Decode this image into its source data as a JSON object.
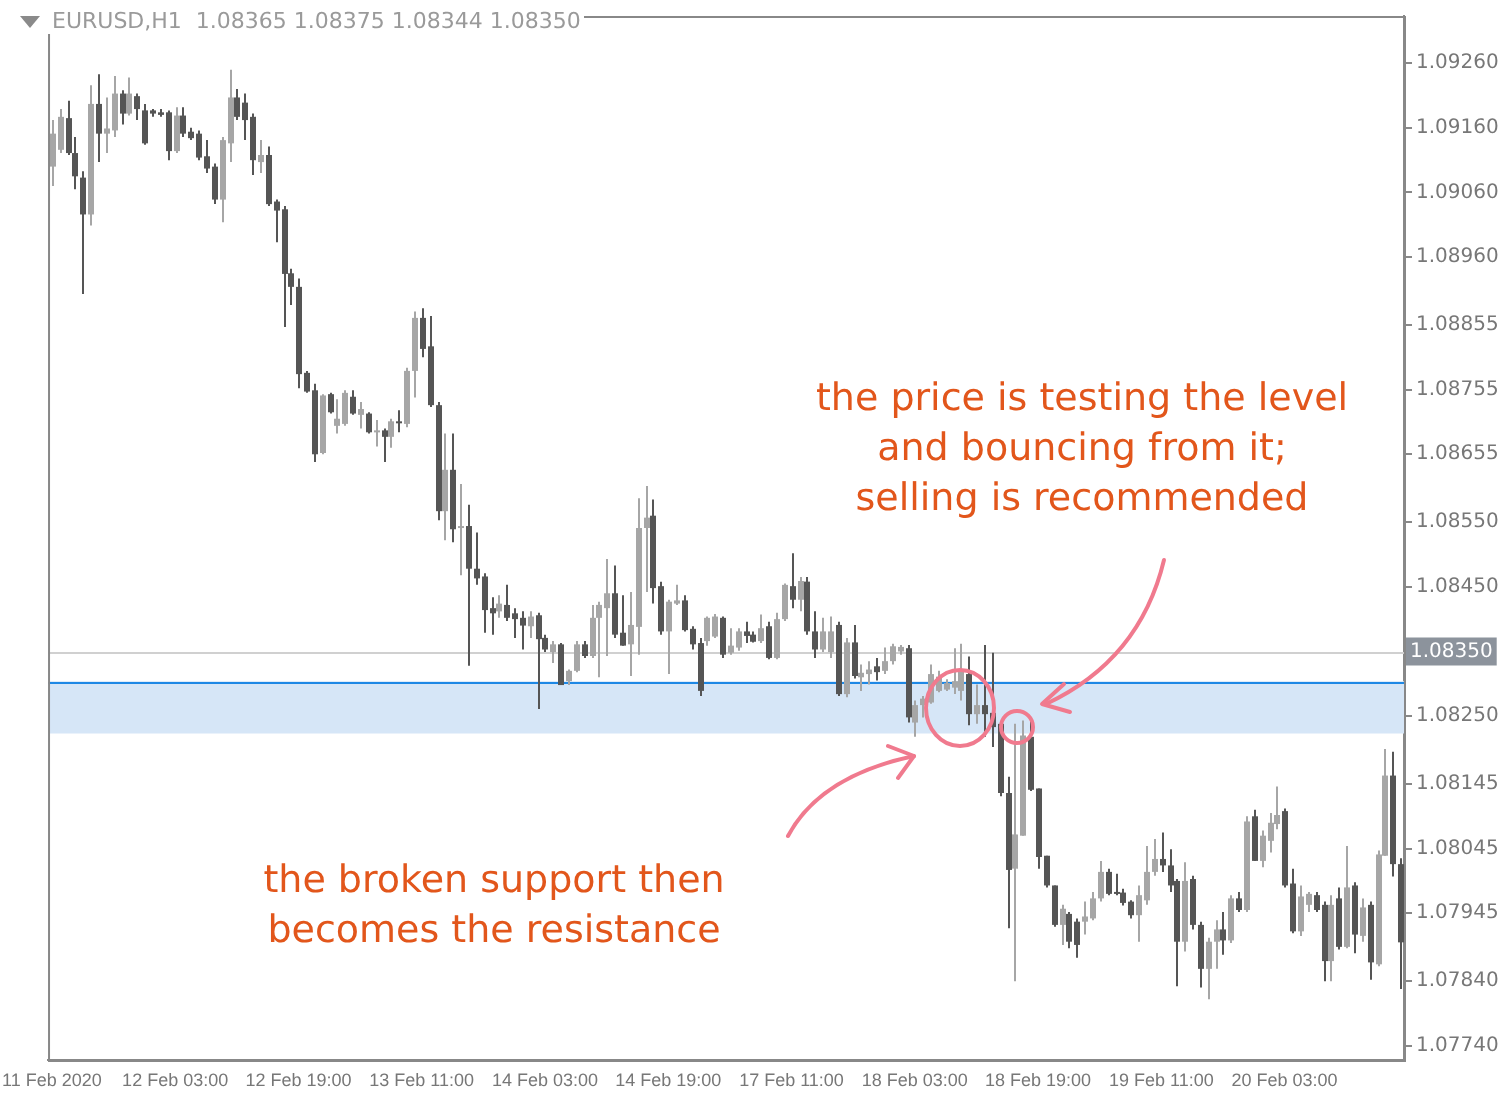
{
  "chart_data": {
    "type": "candlestick",
    "title": "EURUSD,H1  1.08365 1.08375 1.08344 1.08350",
    "categories": [
      "11 Feb 2020",
      null,
      null,
      null,
      null,
      null,
      null,
      null,
      null,
      null,
      null,
      null,
      null,
      null,
      null,
      null,
      "12 Feb 03:00",
      null,
      null,
      null,
      null,
      null,
      null,
      null,
      null,
      null,
      null,
      null,
      null,
      null,
      null,
      null,
      "12 Feb 19:00",
      null,
      null,
      null,
      null,
      null,
      null,
      null,
      null,
      null,
      null,
      null,
      null,
      null,
      null,
      null,
      "13 Feb 11:00",
      null,
      null,
      null,
      null,
      null,
      null,
      null,
      null,
      null,
      null,
      null,
      null,
      null,
      null,
      null,
      "14 Feb 03:00",
      null,
      null,
      null,
      null,
      null,
      null,
      null,
      null,
      null,
      null,
      null,
      null,
      null,
      null,
      null,
      "14 Feb 19:00",
      null,
      null,
      null,
      null,
      null,
      null,
      null,
      null,
      null,
      null,
      null,
      null,
      null,
      null,
      null,
      "17 Feb 11:00",
      null,
      null,
      null,
      null,
      null,
      null,
      null,
      null,
      null,
      null,
      null,
      null,
      null,
      null,
      null,
      "18 Feb 03:00",
      null,
      null,
      null,
      null,
      null,
      null,
      null,
      null,
      null,
      null,
      null,
      null,
      null,
      null,
      null,
      "18 Feb 19:00",
      null,
      null,
      null,
      null,
      null,
      null,
      null,
      null,
      null,
      null,
      null,
      null,
      null,
      null,
      null,
      "19 Feb 11:00",
      null,
      null,
      null,
      null,
      null,
      null,
      null,
      null,
      null,
      null,
      null,
      null,
      null,
      null,
      null,
      "20 Feb 03:00",
      null,
      null,
      null,
      null,
      null,
      null,
      null,
      null,
      null,
      null,
      null,
      null,
      null,
      null,
      null
    ],
    "ohlc": [
      [
        1.091,
        1.09172,
        1.0907,
        1.09151
      ],
      [
        1.09126,
        1.09189,
        1.09121,
        1.09177
      ],
      [
        1.09175,
        1.09202,
        1.09118,
        1.09121
      ],
      [
        1.09121,
        1.09146,
        1.09065,
        1.09085
      ],
      [
        1.09083,
        1.09093,
        1.08903,
        1.09026
      ],
      [
        1.09026,
        1.09226,
        1.09009,
        1.09197
      ],
      [
        1.09197,
        1.09243,
        1.09107,
        1.09151
      ],
      [
        1.09151,
        1.09207,
        1.09121,
        1.09159
      ],
      [
        1.09156,
        1.0924,
        1.09146,
        1.09213
      ],
      [
        1.09213,
        1.09218,
        1.09165,
        1.09182
      ],
      [
        1.09182,
        1.09238,
        1.09179,
        1.09213
      ],
      [
        1.09209,
        1.09213,
        1.09172,
        1.09189
      ],
      [
        1.09187,
        1.09197,
        1.09134,
        1.09136
      ],
      [
        1.09187,
        1.09189,
        1.09177,
        1.09182
      ],
      [
        1.09184,
        1.09189,
        1.09177,
        1.0918
      ],
      [
        1.09184,
        1.09187,
        1.0911,
        1.09124
      ],
      [
        1.09124,
        1.09192,
        1.09121,
        1.09179
      ],
      [
        1.09179,
        1.09192,
        1.09146,
        1.09151
      ],
      [
        1.09154,
        1.0916,
        1.09141,
        1.09144
      ],
      [
        1.09151,
        1.09156,
        1.0911,
        1.09114
      ],
      [
        1.09116,
        1.09141,
        1.0909,
        1.09097
      ],
      [
        1.091,
        1.09105,
        1.09042,
        1.09049
      ],
      [
        1.09049,
        1.09146,
        1.09014,
        1.09141
      ],
      [
        1.09136,
        1.0925,
        1.09107,
        1.09207
      ],
      [
        1.09207,
        1.0922,
        1.09172,
        1.09177
      ],
      [
        1.09199,
        1.09213,
        1.09141,
        1.09172
      ],
      [
        1.09177,
        1.09182,
        1.09087,
        1.0911
      ],
      [
        1.09107,
        1.09141,
        1.0909,
        1.09118
      ],
      [
        1.09118,
        1.09131,
        1.09039,
        1.09042
      ],
      [
        1.09046,
        1.09049,
        1.08983,
        1.09032
      ],
      [
        1.09034,
        1.09039,
        1.08852,
        1.08934
      ],
      [
        1.08935,
        1.08942,
        1.08886,
        1.08914
      ],
      [
        1.08914,
        1.08927,
        1.08757,
        1.08779
      ],
      [
        1.08781,
        1.08784,
        1.0875,
        1.08752
      ],
      [
        1.08754,
        1.08764,
        1.08643,
        1.08655
      ],
      [
        1.08657,
        1.08748,
        1.08655,
        1.08746
      ],
      [
        1.08748,
        1.0875,
        1.08718,
        1.0872
      ],
      [
        1.08699,
        1.0874,
        1.08687,
        1.0871
      ],
      [
        1.08702,
        1.08754,
        1.08699,
        1.0875
      ],
      [
        1.08744,
        1.08754,
        1.08716,
        1.08718
      ],
      [
        1.08716,
        1.08736,
        1.08695,
        1.08725
      ],
      [
        1.08718,
        1.0872,
        1.08687,
        1.08689
      ],
      [
        1.0869,
        1.08708,
        1.08667,
        1.08692
      ],
      [
        1.08692,
        1.08695,
        1.08643,
        1.08682
      ],
      [
        1.08682,
        1.0871,
        1.08665,
        1.08706
      ],
      [
        1.08706,
        1.08723,
        1.08689,
        1.08704
      ],
      [
        1.08702,
        1.08789,
        1.08697,
        1.08784
      ],
      [
        1.08784,
        1.08876,
        1.08743,
        1.08866
      ],
      [
        1.08866,
        1.08881,
        1.08805,
        1.08818
      ],
      [
        1.08822,
        1.08869,
        1.08728,
        1.08731
      ],
      [
        1.08731,
        1.08736,
        1.08553,
        1.08567
      ],
      [
        1.08567,
        1.08687,
        1.08522,
        1.08631
      ],
      [
        1.08631,
        1.08687,
        1.08519,
        1.08539
      ],
      [
        1.08542,
        1.08609,
        1.08468,
        1.08544
      ],
      [
        1.08544,
        1.08577,
        1.08328,
        1.08478
      ],
      [
        1.08478,
        1.08534,
        1.08453,
        1.08463
      ],
      [
        1.08466,
        1.08471,
        1.08379,
        1.08414
      ],
      [
        1.08417,
        1.08434,
        1.08376,
        1.08409
      ],
      [
        1.08412,
        1.08437,
        1.08402,
        1.08424
      ],
      [
        1.08422,
        1.08453,
        1.08397,
        1.08402
      ],
      [
        1.08409,
        1.08417,
        1.08371,
        1.084
      ],
      [
        1.08402,
        1.08412,
        1.08353,
        1.0839
      ],
      [
        1.08389,
        1.08412,
        1.08371,
        1.08404
      ],
      [
        1.08406,
        1.0841,
        1.08261,
        1.08369
      ],
      [
        1.08371,
        1.08376,
        1.08349,
        1.08353
      ],
      [
        1.08349,
        1.08366,
        1.08332,
        1.08361
      ],
      [
        1.08361,
        1.08363,
        1.08298,
        1.08298
      ],
      [
        1.08304,
        1.08322,
        1.08298,
        1.0832
      ],
      [
        1.0832,
        1.08366,
        1.08318,
        1.08361
      ],
      [
        1.08361,
        1.08366,
        1.0834,
        1.08343
      ],
      [
        1.08343,
        1.08422,
        1.0834,
        1.08402
      ],
      [
        1.08402,
        1.08427,
        1.0831,
        1.08422
      ],
      [
        1.08417,
        1.08493,
        1.08343,
        1.0844
      ],
      [
        1.0844,
        1.08483,
        1.08371,
        1.08376
      ],
      [
        1.08379,
        1.08437,
        1.08359,
        1.08359
      ],
      [
        1.08361,
        1.08442,
        1.08312,
        1.08391
      ],
      [
        1.08388,
        1.08587,
        1.08345,
        1.08541
      ],
      [
        1.08541,
        1.08606,
        1.08442,
        1.08557
      ],
      [
        1.0856,
        1.08585,
        1.08424,
        1.08448
      ],
      [
        1.08451,
        1.08458,
        1.08376,
        1.08381
      ],
      [
        1.08381,
        1.0843,
        1.08315,
        1.08427
      ],
      [
        1.08424,
        1.08453,
        1.08422,
        1.08429
      ],
      [
        1.08429,
        1.08437,
        1.08381,
        1.08383
      ],
      [
        1.08385,
        1.08389,
        1.08353,
        1.08361
      ],
      [
        1.08363,
        1.08371,
        1.08281,
        1.08289
      ],
      [
        1.08366,
        1.08404,
        1.08359,
        1.08402
      ],
      [
        1.08373,
        1.08408,
        1.08371,
        1.08404
      ],
      [
        1.08402,
        1.08404,
        1.0834,
        1.08345
      ],
      [
        1.08348,
        1.08386,
        1.08345,
        1.08359
      ],
      [
        1.08356,
        1.08386,
        1.08351,
        1.08381
      ],
      [
        1.08381,
        1.08396,
        1.08363,
        1.08374
      ],
      [
        1.08376,
        1.08381,
        1.08364,
        1.08365
      ],
      [
        1.08366,
        1.08407,
        1.08363,
        1.08386
      ],
      [
        1.08389,
        1.08396,
        1.08338,
        1.0834
      ],
      [
        1.0834,
        1.0841,
        1.08338,
        1.084
      ],
      [
        1.084,
        1.08455,
        1.08397,
        1.08453
      ],
      [
        1.08451,
        1.08502,
        1.08417,
        1.0843
      ],
      [
        1.0843,
        1.08465,
        1.08412,
        1.08459
      ],
      [
        1.08458,
        1.08465,
        1.08376,
        1.08381
      ],
      [
        1.08381,
        1.08412,
        1.0834,
        1.08353
      ],
      [
        1.08353,
        1.08402,
        1.08349,
        1.08381
      ],
      [
        1.08349,
        1.08404,
        1.0834,
        1.08381
      ],
      [
        1.08391,
        1.08396,
        1.08281,
        1.08284
      ],
      [
        1.08284,
        1.08371,
        1.08279,
        1.08364
      ],
      [
        1.08364,
        1.08391,
        1.08308,
        1.08312
      ],
      [
        1.0831,
        1.0833,
        1.08289,
        1.08317
      ],
      [
        1.08315,
        1.08335,
        1.08299,
        1.08322
      ],
      [
        1.08327,
        1.0834,
        1.08305,
        1.08318
      ],
      [
        1.0832,
        1.08356,
        1.08315,
        1.08335
      ],
      [
        1.08335,
        1.08362,
        1.0833,
        1.08358
      ],
      [
        1.0835,
        1.0836,
        1.08345,
        1.08357
      ],
      [
        1.08355,
        1.0836,
        1.0824,
        1.08248
      ],
      [
        1.0824,
        1.08274,
        1.08218,
        1.08267
      ],
      [
        1.08267,
        1.08281,
        1.08248,
        1.08277
      ],
      [
        1.08271,
        1.0833,
        1.08269,
        1.08315
      ],
      [
        1.08289,
        1.0832,
        1.08287,
        1.08311
      ],
      [
        1.08291,
        1.08307,
        1.08289,
        1.08301
      ],
      [
        1.08294,
        1.08355,
        1.08284,
        1.08304
      ],
      [
        1.08289,
        1.08362,
        1.08274,
        1.08322
      ],
      [
        1.08315,
        1.08342,
        1.08236,
        1.08253
      ],
      [
        1.08253,
        1.08299,
        1.08238,
        1.08267
      ],
      [
        1.08267,
        1.0836,
        1.08218,
        1.08253
      ],
      [
        1.08255,
        1.08348,
        1.08202,
        1.08233
      ],
      [
        1.08238,
        1.08238,
        1.08126,
        1.08131
      ],
      [
        1.08131,
        1.08156,
        1.07922,
        1.08012
      ],
      [
        1.08014,
        1.08238,
        1.0784,
        1.08067
      ],
      [
        1.08065,
        1.08243,
        1.08065,
        1.0822
      ],
      [
        1.08218,
        1.08248,
        1.08134,
        1.08136
      ],
      [
        1.08138,
        1.08138,
        1.08014,
        1.08032
      ],
      [
        1.08034,
        1.08034,
        1.07985,
        1.07988
      ],
      [
        1.07988,
        1.07988,
        1.07924,
        1.07927
      ],
      [
        1.07927,
        1.07958,
        1.07896,
        1.07952
      ],
      [
        1.07944,
        1.07947,
        1.07891,
        1.07901
      ],
      [
        1.07932,
        1.07937,
        1.07876,
        1.07896
      ],
      [
        1.07932,
        1.07963,
        1.07912,
        1.0794
      ],
      [
        1.07937,
        1.07978,
        1.07934,
        1.07968
      ],
      [
        1.07968,
        1.08026,
        1.07963,
        1.08009
      ],
      [
        1.08009,
        1.08014,
        1.07973,
        1.07975
      ],
      [
        1.07978,
        1.08006,
        1.07973,
        1.07975
      ],
      [
        1.07977,
        1.07983,
        1.07957,
        1.07961
      ],
      [
        1.07963,
        1.07965,
        1.07937,
        1.07942
      ],
      [
        1.07942,
        1.07988,
        1.07901,
        1.07973
      ],
      [
        1.07965,
        1.08049,
        1.07958,
        1.08009
      ],
      [
        1.08009,
        1.0806,
        1.08003,
        1.08029
      ],
      [
        1.08029,
        1.0807,
        1.08009,
        1.08019
      ],
      [
        1.08019,
        1.08044,
        1.07978,
        1.07988
      ],
      [
        1.07995,
        1.07998,
        1.07832,
        1.07901
      ],
      [
        1.07901,
        1.08024,
        1.07886,
        1.07995
      ],
      [
        1.07998,
        1.08003,
        1.0792,
        1.07927
      ],
      [
        1.07927,
        1.07932,
        1.0783,
        1.07859
      ],
      [
        1.07859,
        1.07907,
        1.07812,
        1.07901
      ],
      [
        1.07901,
        1.07934,
        1.07859,
        1.0792
      ],
      [
        1.0792,
        1.07947,
        1.07881,
        1.07903
      ],
      [
        1.07903,
        1.07973,
        1.07899,
        1.07968
      ],
      [
        1.07968,
        1.07978,
        1.07947,
        1.0795
      ],
      [
        1.0795,
        1.08095,
        1.07947,
        1.08087
      ],
      [
        1.08095,
        1.08105,
        1.08026,
        1.08026
      ],
      [
        1.08026,
        1.08073,
        1.08016,
        1.08065
      ],
      [
        1.08057,
        1.081,
        1.08039,
        1.08085
      ],
      [
        1.08083,
        1.08141,
        1.08075,
        1.08097
      ],
      [
        1.08103,
        1.08107,
        1.07985,
        1.07988
      ],
      [
        1.07991,
        1.08014,
        1.07914,
        1.07917
      ],
      [
        1.07917,
        1.07988,
        1.0791,
        1.07971
      ],
      [
        1.07958,
        1.07978,
        1.07947,
        1.07975
      ],
      [
        1.07973,
        1.07978,
        1.07947,
        1.0795
      ],
      [
        1.07958,
        1.07963,
        1.0784,
        1.07871
      ],
      [
        1.07871,
        1.07973,
        1.0784,
        1.07958
      ],
      [
        1.07968,
        1.07985,
        1.07889,
        1.07893
      ],
      [
        1.07893,
        1.08049,
        1.07891,
        1.07985
      ],
      [
        1.07988,
        1.07993,
        1.07883,
        1.07912
      ],
      [
        1.0791,
        1.07968,
        1.07901,
        1.07954
      ],
      [
        1.07958,
        1.07963,
        1.07842,
        1.07869
      ],
      [
        1.07866,
        1.08042,
        1.07863,
        1.08036
      ],
      [
        1.08034,
        1.08199,
        1.08034,
        1.08158
      ],
      [
        1.08158,
        1.08195,
        1.08002,
        1.08021
      ],
      [
        1.08021,
        1.0803,
        1.07828,
        1.079
      ]
    ],
    "colors": [
      "#a6a6a6",
      "#a6a6a6",
      "#555555",
      "#555555",
      "#555555",
      "#a6a6a6",
      "#555555",
      "#a6a6a6",
      "#a6a6a6",
      "#555555",
      "#a6a6a6",
      "#555555",
      "#555555",
      "#555555",
      "#555555",
      "#555555",
      "#a6a6a6",
      "#555555",
      "#555555",
      "#555555",
      "#555555",
      "#555555",
      "#a6a6a6",
      "#a6a6a6",
      "#555555",
      "#555555",
      "#555555",
      "#a6a6a6",
      "#555555",
      "#555555",
      "#555555",
      "#555555",
      "#555555",
      "#555555",
      "#555555",
      "#a6a6a6",
      "#555555",
      "#a6a6a6",
      "#a6a6a6",
      "#555555",
      "#a6a6a6",
      "#555555",
      "#a6a6a6",
      "#555555",
      "#a6a6a6",
      "#555555",
      "#a6a6a6",
      "#a6a6a6",
      "#555555",
      "#555555",
      "#555555",
      "#a6a6a6",
      "#555555",
      "#a6a6a6",
      "#555555",
      "#555555",
      "#555555",
      "#555555",
      "#a6a6a6",
      "#555555",
      "#555555",
      "#555555",
      "#a6a6a6",
      "#555555",
      "#555555",
      "#a6a6a6",
      "#555555",
      "#a6a6a6",
      "#a6a6a6",
      "#555555",
      "#a6a6a6",
      "#a6a6a6",
      "#a6a6a6",
      "#555555",
      "#555555",
      "#a6a6a6",
      "#a6a6a6",
      "#a6a6a6",
      "#555555",
      "#555555",
      "#a6a6a6",
      "#a6a6a6",
      "#555555",
      "#555555",
      "#555555",
      "#a6a6a6",
      "#a6a6a6",
      "#555555",
      "#a6a6a6",
      "#a6a6a6",
      "#555555",
      "#555555",
      "#a6a6a6",
      "#555555",
      "#a6a6a6",
      "#a6a6a6",
      "#555555",
      "#a6a6a6",
      "#555555",
      "#555555",
      "#a6a6a6",
      "#a6a6a6",
      "#555555",
      "#a6a6a6",
      "#555555",
      "#a6a6a6",
      "#a6a6a6",
      "#555555",
      "#a6a6a6",
      "#a6a6a6",
      "#a6a6a6",
      "#555555",
      "#a6a6a6",
      "#a6a6a6",
      "#a6a6a6",
      "#a6a6a6",
      "#a6a6a6",
      "#a6a6a6",
      "#a6a6a6",
      "#555555",
      "#a6a6a6",
      "#555555",
      "#555555",
      "#555555",
      "#555555",
      "#a6a6a6",
      "#a6a6a6",
      "#555555",
      "#555555",
      "#555555",
      "#555555",
      "#a6a6a6",
      "#555555",
      "#555555",
      "#a6a6a6",
      "#a6a6a6",
      "#a6a6a6",
      "#555555",
      "#555555",
      "#555555",
      "#555555",
      "#a6a6a6",
      "#a6a6a6",
      "#a6a6a6",
      "#555555",
      "#555555",
      "#555555",
      "#a6a6a6",
      "#555555",
      "#555555",
      "#a6a6a6",
      "#a6a6a6",
      "#555555",
      "#a6a6a6",
      "#555555",
      "#a6a6a6",
      "#555555",
      "#a6a6a6",
      "#a6a6a6",
      "#a6a6a6",
      "#555555",
      "#555555",
      "#a6a6a6",
      "#a6a6a6",
      "#555555",
      "#555555",
      "#a6a6a6",
      "#555555",
      "#a6a6a6",
      "#555555",
      "#a6a6a6",
      "#555555",
      "#a6a6a6",
      "#a6a6a6",
      "#555555",
      "#555555"
    ],
    "ylim": [
      1.07718,
      1.09333
    ],
    "yticks": [
      {
        "value": 1.0926,
        "label": "1.09260"
      },
      {
        "value": 1.0916,
        "label": "1.09160"
      },
      {
        "value": 1.0906,
        "label": "1.09060"
      },
      {
        "value": 1.0896,
        "label": "1.08960"
      },
      {
        "value": 1.08855,
        "label": "1.08855"
      },
      {
        "value": 1.08755,
        "label": "1.08755"
      },
      {
        "value": 1.08655,
        "label": "1.08655"
      },
      {
        "value": 1.0855,
        "label": "1.08550"
      },
      {
        "value": 1.0845,
        "label": "1.08450"
      },
      {
        "value": 1.0825,
        "label": "1.08250"
      },
      {
        "value": 1.08145,
        "label": "1.08145"
      },
      {
        "value": 1.08045,
        "label": "1.08045"
      },
      {
        "value": 1.07945,
        "label": "1.07945"
      },
      {
        "value": 1.0784,
        "label": "1.07840"
      },
      {
        "value": 1.0774,
        "label": "1.07740"
      }
    ],
    "bands": [
      {
        "axis": "y",
        "from": 1.08223,
        "to": 1.08304,
        "color": "#d6e6f7"
      }
    ],
    "ref_lines": [
      {
        "axis": "y",
        "value": 1.0835,
        "label": "1.08350",
        "color": "#d0d0d0"
      },
      {
        "axis": "y",
        "value": 1.08304,
        "color": "#1e88e5",
        "line_style": "solid"
      }
    ],
    "annotations": [
      "the price is testing the level\nand bouncing from it;\nselling is recommended",
      "the broken support then\nbecomes the resistance"
    ]
  }
}
